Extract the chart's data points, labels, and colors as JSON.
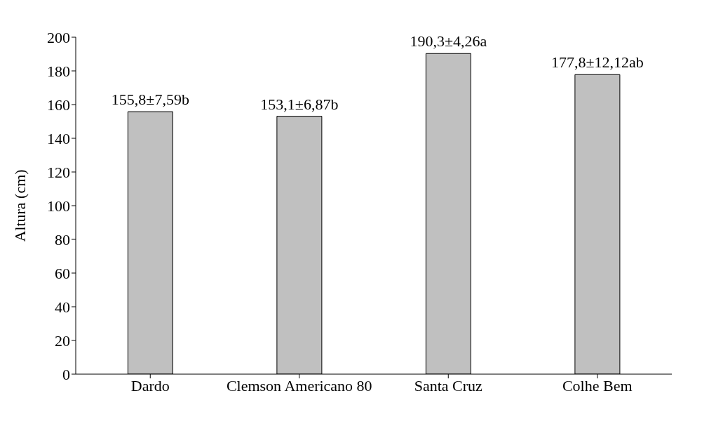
{
  "chart_data": {
    "type": "bar",
    "ylabel": "Altura (cm)",
    "categories": [
      "Dardo",
      "Clemson Americano 80",
      "Santa Cruz",
      "Colhe Bem"
    ],
    "values": [
      155.8,
      153.1,
      190.3,
      177.8
    ],
    "value_labels": [
      "155,8±7,59b",
      "153,1±6,87b",
      "190,3±4,26a",
      "177,8±12,12ab"
    ],
    "color": "#c0c0c0",
    "ylim": [
      0,
      200
    ],
    "yticks": [
      0,
      20,
      40,
      60,
      80,
      100,
      120,
      140,
      160,
      180,
      200
    ],
    "grid": false,
    "legend": false
  }
}
